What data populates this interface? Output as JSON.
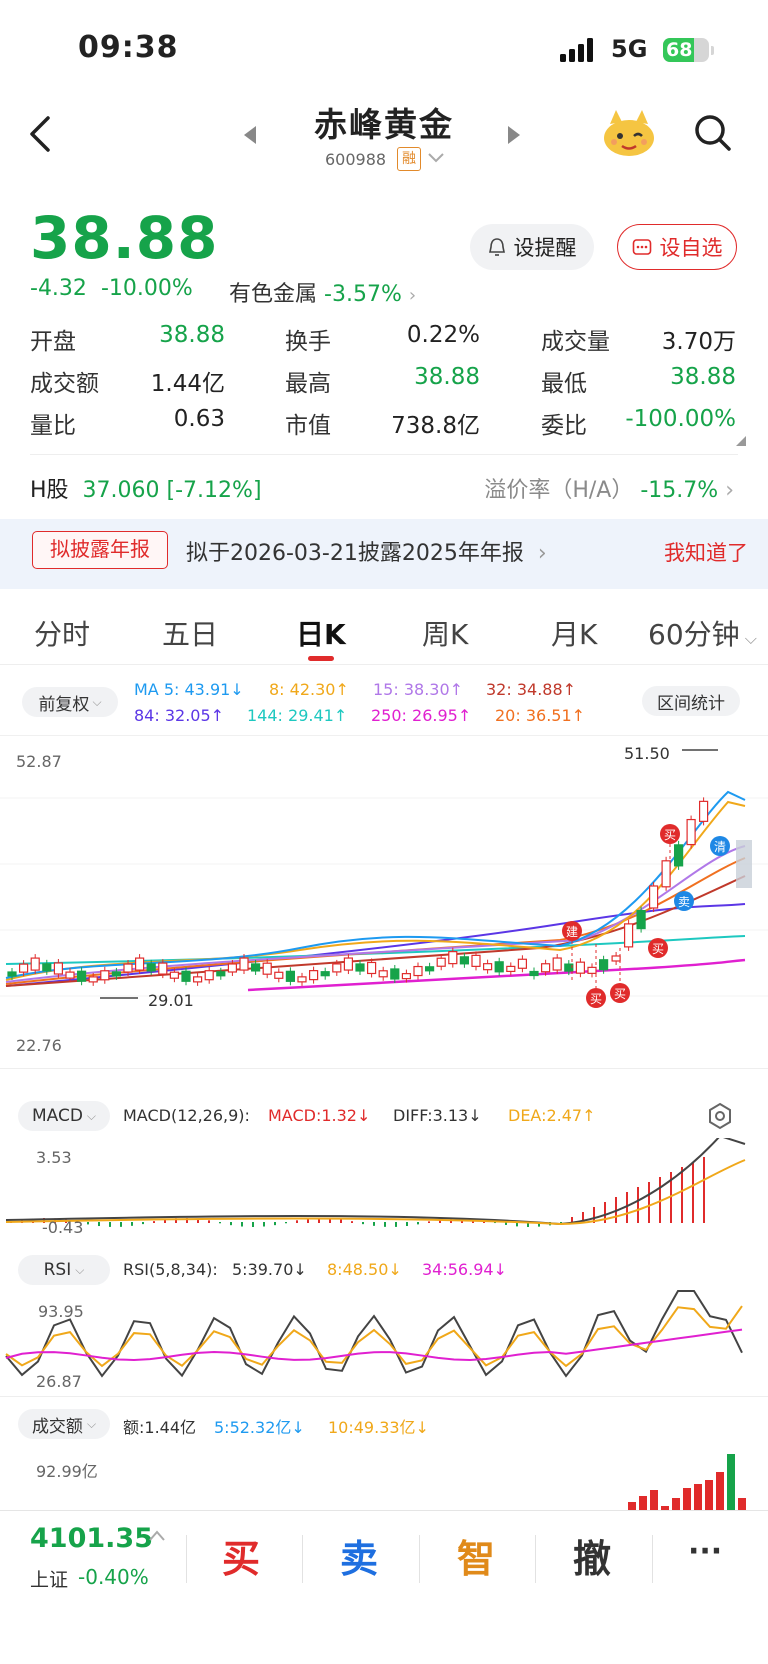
{
  "status_bar": {
    "time": "09:38",
    "network": "5G",
    "battery": "68"
  },
  "header": {
    "name": "赤峰黄金",
    "code": "600988",
    "badge": "融"
  },
  "quote": {
    "price": "38.88",
    "change": "-4.32",
    "change_pct": "-10.00%",
    "sector": "有色金属",
    "sector_pct": "-3.57%",
    "remind_label": "设提醒",
    "watch_label": "设自选"
  },
  "stats": [
    {
      "label": "开盘",
      "value": "38.88",
      "tone": "green"
    },
    {
      "label": "换手",
      "value": "0.22%",
      "tone": "dark"
    },
    {
      "label": "成交量",
      "value": "3.70万",
      "tone": "dark"
    },
    {
      "label": "成交额",
      "value": "1.44亿",
      "tone": "dark"
    },
    {
      "label": "最高",
      "value": "38.88",
      "tone": "green"
    },
    {
      "label": "最低",
      "value": "38.88",
      "tone": "green"
    },
    {
      "label": "量比",
      "value": "0.63",
      "tone": "dark"
    },
    {
      "label": "市值",
      "value": "738.8亿",
      "tone": "dark"
    },
    {
      "label": "委比",
      "value": "-100.00%",
      "tone": "green"
    }
  ],
  "hshare": {
    "label": "H股",
    "value": "37.060",
    "pct": "[-7.12%]",
    "premium_label": "溢价率（H/A）",
    "premium_value": "-15.7%"
  },
  "banner": {
    "tag": "拟披露年报",
    "text": "拟于2026-03-21披露2025年年报",
    "dismiss": "我知道了"
  },
  "tabs": [
    "分时",
    "五日",
    "日K",
    "周K",
    "月K",
    "60分钟"
  ],
  "chart": {
    "adjust_label": "前复权",
    "range_stats_label": "区间统计",
    "ma_labels": [
      {
        "text": "MA 5: 43.91↓",
        "color": "#1e9af0"
      },
      {
        "text": "8: 42.30↑",
        "color": "#f0a81a"
      },
      {
        "text": "15: 38.30↑",
        "color": "#b078e8"
      },
      {
        "text": "32: 34.88↑",
        "color": "#c0392b"
      },
      {
        "text": "84: 32.05↑",
        "color": "#5b36e6"
      },
      {
        "text": "144: 29.41↑",
        "color": "#1ec8c0"
      },
      {
        "text": "250: 26.95↑",
        "color": "#e020d0"
      },
      {
        "text": "20: 36.51↑",
        "color": "#f07020"
      }
    ],
    "y_high": "52.87",
    "y_low": "22.76",
    "max_label": "51.50",
    "min_label": "29.01",
    "signals": [
      "建",
      "买",
      "买",
      "买",
      "卖",
      "买",
      "清"
    ]
  },
  "macd": {
    "selector": "MACD",
    "params": "MACD(12,26,9):",
    "macd": "MACD:1.32↓",
    "diff": "DIFF:3.13↓",
    "dea": "DEA:2.47↑",
    "y_high": "3.53",
    "y_low": "-0.43"
  },
  "rsi": {
    "selector": "RSI",
    "params": "RSI(5,8,34):",
    "r5": "5:39.70↓",
    "r8": "8:48.50↓",
    "r34": "34:56.94↓",
    "y_high": "93.95",
    "y_low": "26.87"
  },
  "turnover": {
    "selector": "成交额",
    "amount": "额:1.44亿",
    "ma5": "5:52.32亿↓",
    "ma10": "10:49.33亿↓",
    "y_high": "92.99亿"
  },
  "bottom": {
    "index_value": "4101.35",
    "index_name": "上证",
    "index_change": "-0.40%",
    "buy": "买",
    "sell": "卖",
    "smart": "智",
    "cancel": "撤",
    "more": "···"
  }
}
